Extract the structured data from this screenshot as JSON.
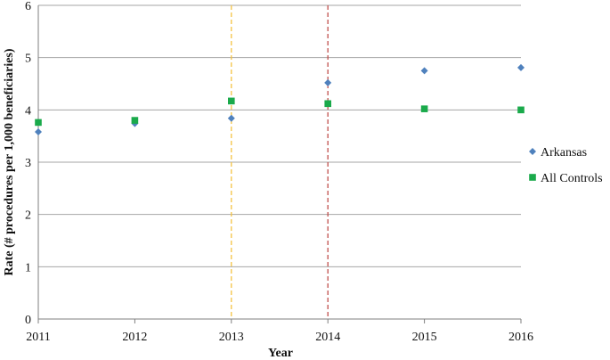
{
  "chart_data": {
    "type": "scatter",
    "xlabel": "Year",
    "ylabel": "Rate (# procedures per 1,000 beneficiaries)",
    "x": [
      2011,
      2012,
      2013,
      2014,
      2015,
      2016
    ],
    "xlim": [
      2011,
      2016
    ],
    "ylim": [
      0,
      6
    ],
    "y_ticks": [
      0,
      1,
      2,
      3,
      4,
      5,
      6
    ],
    "grid": "horizontal",
    "legend_position": "right",
    "series": [
      {
        "name": "Arkansas",
        "marker": "diamond",
        "color": "#4f81bd",
        "values": [
          3.58,
          3.74,
          3.84,
          4.52,
          4.75,
          4.81
        ]
      },
      {
        "name": "All Controls",
        "marker": "square",
        "color": "#1aaa4b",
        "values": [
          3.76,
          3.8,
          4.17,
          4.12,
          4.02,
          4.0
        ]
      }
    ],
    "reference_lines": [
      {
        "x": 2013,
        "color": "#f5c242",
        "style": "dashed"
      },
      {
        "x": 2014,
        "color": "#c0504d",
        "style": "dashed"
      }
    ]
  }
}
